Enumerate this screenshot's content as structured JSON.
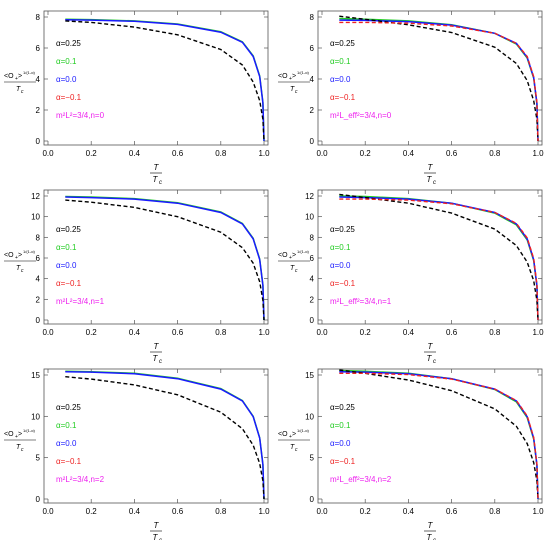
{
  "figure": {
    "x_label_num": "T",
    "x_label_den": "T",
    "x_label_den_sub": "c",
    "y_label_num_left": "<O",
    "y_label_sub": "+",
    "y_label_close": ">",
    "y_label_den_left": "T",
    "y_label_den_sub_left": "c",
    "legend_alpha_entries": [
      {
        "text": "α=0.25",
        "color": "#000000"
      },
      {
        "text": "α=0.1",
        "color": "#22cc22"
      },
      {
        "text": "α=0.0",
        "color": "#1a1aff"
      },
      {
        "text": "α=−0.1",
        "color": "#ee2222"
      }
    ],
    "legend_param_color": "#ee22ee"
  },
  "chart_data": [
    {
      "type": "line",
      "panel": "top-left",
      "ylim": [
        0,
        8
      ],
      "yticks": [
        0,
        2,
        4,
        6,
        8
      ],
      "xlim": [
        0.0,
        1.0
      ],
      "xticks": [
        "0.0",
        "0.2",
        "0.4",
        "0.6",
        "0.8",
        "1.0"
      ],
      "exponent": "1/(1-α)",
      "legend_param": "m²L²=3/4,n=0",
      "series": [
        {
          "name": "α=0.25",
          "color": "#000000",
          "dash": true,
          "x": [
            0.08,
            0.2,
            0.4,
            0.6,
            0.8,
            0.9,
            0.95,
            0.98,
            0.995,
            1.0
          ],
          "y": [
            7.75,
            7.65,
            7.35,
            6.85,
            5.9,
            4.9,
            3.8,
            2.6,
            1.4,
            0
          ]
        },
        {
          "name": "α=0.1",
          "color": "#22cc22",
          "dash": false,
          "x": [
            0.08,
            0.2,
            0.4,
            0.6,
            0.8,
            0.9,
            0.95,
            0.98,
            0.995,
            1.0
          ],
          "y": [
            7.85,
            7.83,
            7.75,
            7.55,
            7.05,
            6.4,
            5.5,
            4.2,
            2.5,
            0
          ]
        },
        {
          "name": "α=0.0",
          "color": "#1a1aff",
          "dash": false,
          "x": [
            0.08,
            0.2,
            0.4,
            0.6,
            0.8,
            0.9,
            0.95,
            0.98,
            0.995,
            1.0
          ],
          "y": [
            7.82,
            7.8,
            7.72,
            7.52,
            7.02,
            6.37,
            5.45,
            4.15,
            2.45,
            0
          ]
        }
      ]
    },
    {
      "type": "line",
      "panel": "top-right",
      "ylim": [
        0,
        8
      ],
      "yticks": [
        0,
        2,
        4,
        6,
        8
      ],
      "xlim": [
        0.0,
        1.0
      ],
      "xticks": [
        "0.0",
        "0.2",
        "0.4",
        "0.6",
        "0.8",
        "1.0"
      ],
      "exponent": "1/(1-α)",
      "legend_param": "m²L_eff²=3/4,n=0",
      "series": [
        {
          "name": "α=0.25",
          "color": "#000000",
          "dash": true,
          "x": [
            0.08,
            0.2,
            0.4,
            0.6,
            0.8,
            0.9,
            0.95,
            0.98,
            0.995,
            1.0
          ],
          "y": [
            8.05,
            7.85,
            7.5,
            7.0,
            6.05,
            5.0,
            3.9,
            2.6,
            1.4,
            0
          ]
        },
        {
          "name": "α=0.1",
          "color": "#22cc22",
          "dash": false,
          "x": [
            0.08,
            0.2,
            0.4,
            0.6,
            0.8,
            0.9,
            0.95,
            0.98,
            0.995,
            1.0
          ],
          "y": [
            7.9,
            7.85,
            7.75,
            7.5,
            6.95,
            6.25,
            5.35,
            4.05,
            2.4,
            0
          ]
        },
        {
          "name": "α=0.0",
          "color": "#1a1aff",
          "dash": false,
          "x": [
            0.08,
            0.2,
            0.4,
            0.6,
            0.8,
            0.9,
            0.95,
            0.98,
            0.995,
            1.0
          ],
          "y": [
            7.8,
            7.78,
            7.7,
            7.48,
            6.95,
            6.3,
            5.4,
            4.1,
            2.45,
            0
          ]
        },
        {
          "name": "α=−0.1",
          "color": "#ee2222",
          "dash": true,
          "x": [
            0.08,
            0.2,
            0.4,
            0.6,
            0.8,
            0.9,
            0.95,
            0.98,
            0.995,
            1.0
          ],
          "y": [
            7.65,
            7.65,
            7.6,
            7.42,
            6.95,
            6.3,
            5.45,
            4.15,
            2.5,
            0
          ]
        }
      ]
    },
    {
      "type": "line",
      "panel": "middle-left",
      "ylim": [
        0,
        12
      ],
      "yticks": [
        0,
        2,
        4,
        6,
        8,
        10,
        12
      ],
      "xlim": [
        0.0,
        1.0
      ],
      "xticks": [
        "0.0",
        "0.2",
        "0.4",
        "0.6",
        "0.8",
        "1.0"
      ],
      "exponent": "1/(1-α)",
      "legend_param": "m²L²=3/4,n=1",
      "series": [
        {
          "name": "α=0.25",
          "color": "#000000",
          "dash": true,
          "x": [
            0.08,
            0.2,
            0.4,
            0.6,
            0.8,
            0.9,
            0.95,
            0.98,
            0.995,
            1.0
          ],
          "y": [
            11.6,
            11.4,
            10.9,
            10.0,
            8.5,
            7.0,
            5.5,
            3.7,
            1.9,
            0
          ]
        },
        {
          "name": "α=0.1",
          "color": "#22cc22",
          "dash": false,
          "x": [
            0.08,
            0.2,
            0.4,
            0.6,
            0.8,
            0.9,
            0.95,
            0.98,
            0.995,
            1.0
          ],
          "y": [
            11.95,
            11.9,
            11.75,
            11.35,
            10.45,
            9.35,
            7.9,
            5.9,
            3.4,
            0
          ]
        },
        {
          "name": "α=0.0",
          "color": "#1a1aff",
          "dash": false,
          "x": [
            0.08,
            0.2,
            0.4,
            0.6,
            0.8,
            0.9,
            0.95,
            0.98,
            0.995,
            1.0
          ],
          "y": [
            11.9,
            11.85,
            11.7,
            11.3,
            10.4,
            9.3,
            7.85,
            5.85,
            3.35,
            0
          ]
        }
      ]
    },
    {
      "type": "line",
      "panel": "middle-right",
      "ylim": [
        0,
        12
      ],
      "yticks": [
        0,
        2,
        4,
        6,
        8,
        10,
        12
      ],
      "xlim": [
        0.0,
        1.0
      ],
      "xticks": [
        "0.0",
        "0.2",
        "0.4",
        "0.6",
        "0.8",
        "1.0"
      ],
      "exponent": "1/(1-α)",
      "legend_param": "m²L_eff²=3/4,n=1",
      "series": [
        {
          "name": "α=0.25",
          "color": "#000000",
          "dash": true,
          "x": [
            0.08,
            0.2,
            0.4,
            0.6,
            0.8,
            0.9,
            0.95,
            0.98,
            0.995,
            1.0
          ],
          "y": [
            12.15,
            11.85,
            11.3,
            10.35,
            8.8,
            7.2,
            5.6,
            3.8,
            1.9,
            0
          ]
        },
        {
          "name": "α=0.1",
          "color": "#22cc22",
          "dash": false,
          "x": [
            0.08,
            0.2,
            0.4,
            0.6,
            0.8,
            0.9,
            0.95,
            0.98,
            0.995,
            1.0
          ],
          "y": [
            12.0,
            11.95,
            11.75,
            11.3,
            10.35,
            9.2,
            7.75,
            5.75,
            3.3,
            0
          ]
        },
        {
          "name": "α=0.0",
          "color": "#1a1aff",
          "dash": false,
          "x": [
            0.08,
            0.2,
            0.4,
            0.6,
            0.8,
            0.9,
            0.95,
            0.98,
            0.995,
            1.0
          ],
          "y": [
            11.9,
            11.85,
            11.7,
            11.3,
            10.4,
            9.3,
            7.85,
            5.85,
            3.35,
            0
          ]
        },
        {
          "name": "α=−0.1",
          "color": "#ee2222",
          "dash": true,
          "x": [
            0.08,
            0.2,
            0.4,
            0.6,
            0.8,
            0.9,
            0.95,
            0.98,
            0.995,
            1.0
          ],
          "y": [
            11.7,
            11.7,
            11.6,
            11.25,
            10.4,
            9.35,
            7.95,
            5.95,
            3.45,
            0
          ]
        }
      ]
    },
    {
      "type": "line",
      "panel": "bottom-left",
      "ylim": [
        0,
        15
      ],
      "yticks": [
        0,
        5,
        10,
        15
      ],
      "xlim": [
        0.0,
        1.0
      ],
      "xticks": [
        "0.0",
        "0.2",
        "0.4",
        "0.6",
        "0.8",
        "1.0"
      ],
      "exponent": "1/(1-α)",
      "legend_param": "m²L²=3/4,n=2",
      "series": [
        {
          "name": "α=0.25",
          "color": "#000000",
          "dash": true,
          "x": [
            0.08,
            0.2,
            0.4,
            0.6,
            0.8,
            0.9,
            0.95,
            0.98,
            0.995,
            1.0
          ],
          "y": [
            14.8,
            14.5,
            13.8,
            12.6,
            10.5,
            8.5,
            6.5,
            4.3,
            2.2,
            0
          ]
        },
        {
          "name": "α=0.1",
          "color": "#22cc22",
          "dash": false,
          "x": [
            0.08,
            0.2,
            0.4,
            0.6,
            0.8,
            0.9,
            0.95,
            0.98,
            0.995,
            1.0
          ],
          "y": [
            15.45,
            15.4,
            15.2,
            14.6,
            13.35,
            11.9,
            10.0,
            7.4,
            4.2,
            0
          ]
        },
        {
          "name": "α=0.0",
          "color": "#1a1aff",
          "dash": false,
          "x": [
            0.08,
            0.2,
            0.4,
            0.6,
            0.8,
            0.9,
            0.95,
            0.98,
            0.995,
            1.0
          ],
          "y": [
            15.4,
            15.35,
            15.15,
            14.55,
            13.3,
            11.85,
            9.95,
            7.35,
            4.15,
            0
          ]
        }
      ]
    },
    {
      "type": "line",
      "panel": "bottom-right",
      "ylim": [
        0,
        15
      ],
      "yticks": [
        0,
        5,
        10,
        15
      ],
      "xlim": [
        0.0,
        1.0
      ],
      "xticks": [
        "0.0",
        "0.2",
        "0.4",
        "0.6",
        "0.8",
        "1.0"
      ],
      "exponent": "1/(1-α)",
      "legend_param": "m²L_eff²=3/4,n=2",
      "series": [
        {
          "name": "α=0.25",
          "color": "#000000",
          "dash": true,
          "x": [
            0.08,
            0.2,
            0.4,
            0.6,
            0.8,
            0.9,
            0.95,
            0.98,
            0.995,
            1.0
          ],
          "y": [
            15.6,
            15.2,
            14.4,
            13.1,
            10.9,
            8.8,
            6.7,
            4.4,
            2.2,
            0
          ]
        },
        {
          "name": "α=0.1",
          "color": "#22cc22",
          "dash": false,
          "x": [
            0.08,
            0.2,
            0.4,
            0.6,
            0.8,
            0.9,
            0.95,
            0.98,
            0.995,
            1.0
          ],
          "y": [
            15.55,
            15.45,
            15.2,
            14.55,
            13.25,
            11.75,
            9.85,
            7.25,
            4.1,
            0
          ]
        },
        {
          "name": "α=0.0",
          "color": "#1a1aff",
          "dash": false,
          "x": [
            0.08,
            0.2,
            0.4,
            0.6,
            0.8,
            0.9,
            0.95,
            0.98,
            0.995,
            1.0
          ],
          "y": [
            15.4,
            15.35,
            15.15,
            14.55,
            13.3,
            11.85,
            9.95,
            7.35,
            4.15,
            0
          ]
        },
        {
          "name": "α=−0.1",
          "color": "#ee2222",
          "dash": true,
          "x": [
            0.08,
            0.2,
            0.4,
            0.6,
            0.8,
            0.9,
            0.95,
            0.98,
            0.995,
            1.0
          ],
          "y": [
            15.2,
            15.2,
            15.05,
            14.5,
            13.3,
            11.9,
            10.05,
            7.45,
            4.25,
            0
          ]
        }
      ]
    }
  ]
}
